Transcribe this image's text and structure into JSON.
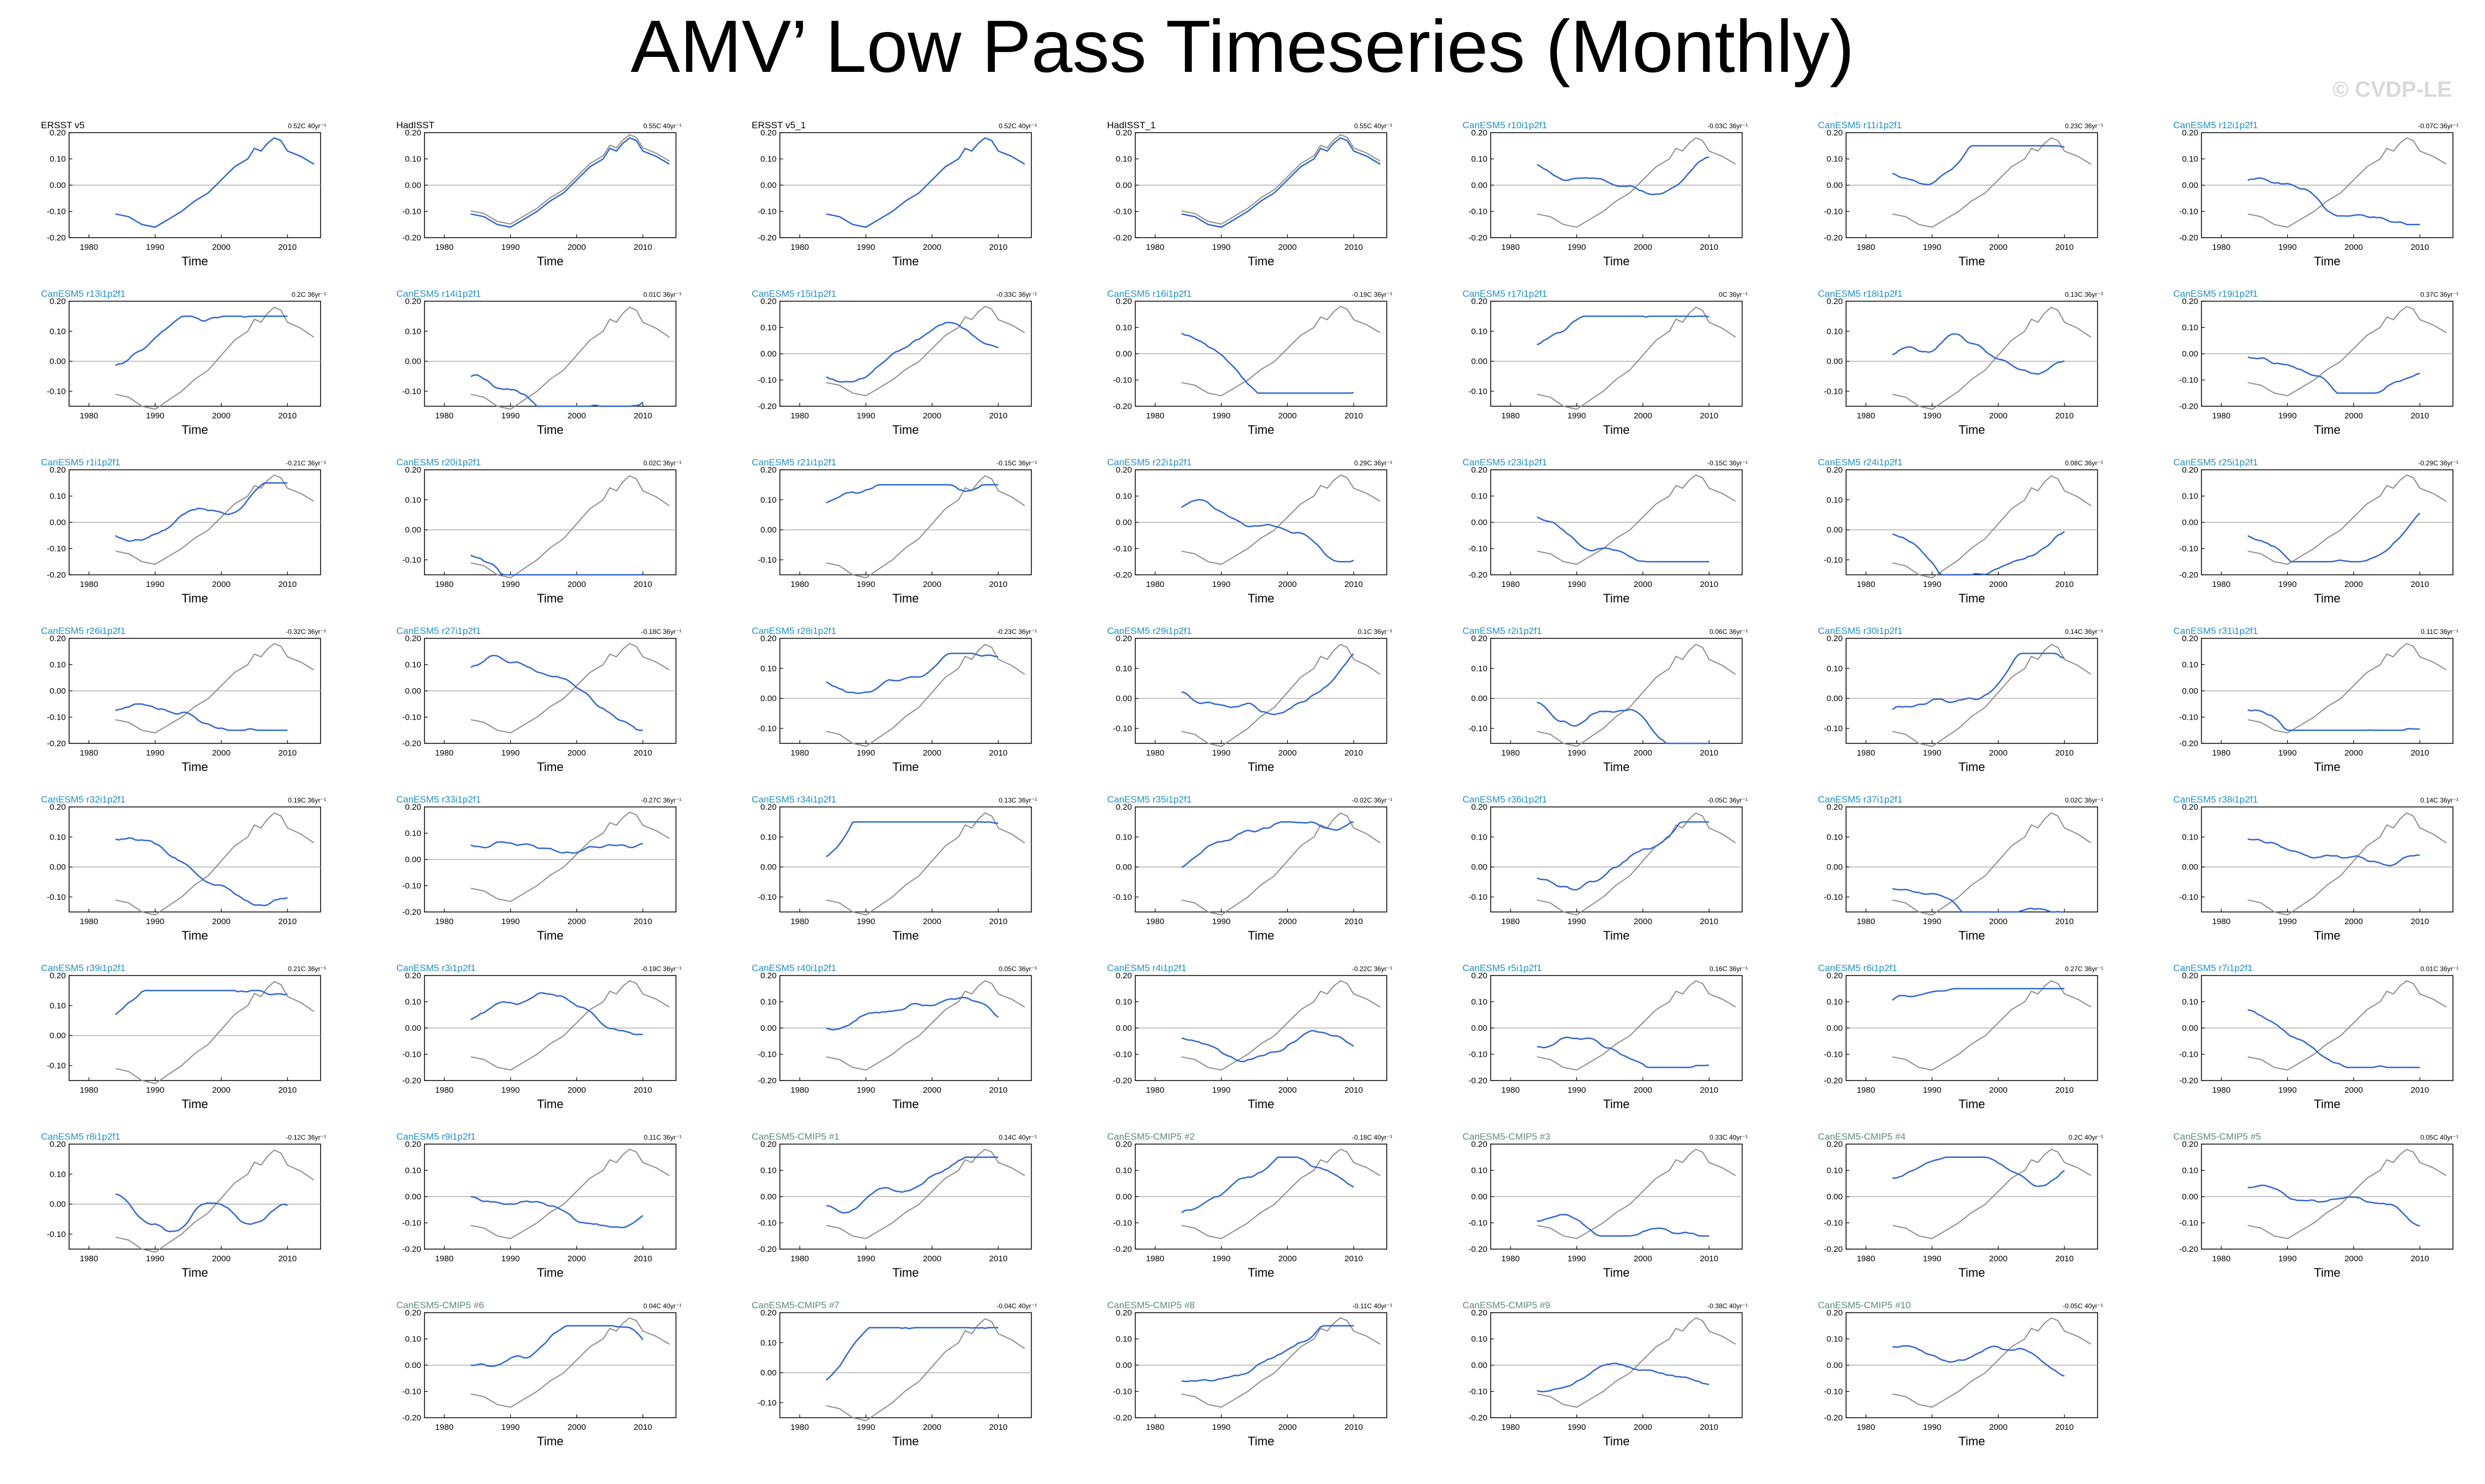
{
  "title": "AMV’ Low Pass Timeseries (Monthly)",
  "watermark": "© CVDP-LE",
  "colors": {
    "obs": "#000000",
    "member": "#1e90c8",
    "ensemble": "#5a8a7a",
    "model_line": "#2f66d4",
    "obs_line": "#8c8c8c"
  },
  "axis": {
    "xlabel": "Time",
    "xticks": [
      1980,
      1990,
      2000,
      2010
    ],
    "yticks_a": [
      "0.20",
      "0.10",
      "0.00",
      "-0.10",
      "-0.20"
    ],
    "yticks_b": [
      "0.20",
      "0.10",
      "0.00",
      "-0.10"
    ]
  },
  "chart_data": {
    "type": "line",
    "x_range": [
      1977,
      2015
    ],
    "observed_reference": [
      -0.11,
      -0.13,
      -0.15,
      -0.17,
      -0.13,
      -0.1,
      -0.06,
      -0.02,
      0.03,
      0.07,
      0.1,
      0.14,
      0.13,
      0.16,
      0.18,
      0.16,
      0.12,
      0.11,
      0.08
    ],
    "observed_x": [
      1984,
      1986,
      1988,
      1990,
      1992,
      1994,
      1996,
      1998,
      2000,
      2002,
      2004,
      2006,
      2005,
      2007,
      2008,
      2009,
      2010,
      2012,
      2014
    ],
    "panels": [
      {
        "name": "ERSST v5",
        "trend": "0.52C 40yr⁻¹",
        "cat": "obs",
        "ylim": [
          -0.2,
          0.2
        ]
      },
      {
        "name": "HadISST",
        "trend": "0.55C 40yr⁻¹",
        "cat": "obs",
        "ylim": [
          -0.2,
          0.2
        ]
      },
      {
        "name": "ERSST v5_1",
        "trend": "0.52C 40yr⁻¹",
        "cat": "obs",
        "ylim": [
          -0.2,
          0.2
        ]
      },
      {
        "name": "HadISST_1",
        "trend": "0.55C 40yr⁻¹",
        "cat": "obs",
        "ylim": [
          -0.2,
          0.2
        ]
      },
      {
        "name": "CanESM5 r10i1p2f1",
        "trend": "-0.03C 36yr⁻¹",
        "cat": "member",
        "ylim": [
          -0.2,
          0.2
        ]
      },
      {
        "name": "CanESM5 r11i1p2f1",
        "trend": "0.23C 36yr⁻¹",
        "cat": "member",
        "ylim": [
          -0.2,
          0.2
        ]
      },
      {
        "name": "CanESM5 r12i1p2f1",
        "trend": "-0.07C 36yr⁻¹",
        "cat": "member",
        "ylim": [
          -0.2,
          0.2
        ]
      },
      {
        "name": "CanESM5 r13i1p2f1",
        "trend": "0.2C 36yr⁻¹",
        "cat": "member",
        "ylim": [
          -0.15,
          0.2
        ]
      },
      {
        "name": "CanESM5 r14i1p2f1",
        "trend": "0.01C 36yr⁻¹",
        "cat": "member",
        "ylim": [
          -0.15,
          0.2
        ]
      },
      {
        "name": "CanESM5 r15i1p2f1",
        "trend": "-0.33C 36yr⁻¹",
        "cat": "member",
        "ylim": [
          -0.2,
          0.2
        ]
      },
      {
        "name": "CanESM5 r16i1p2f1",
        "trend": "-0.19C 36yr⁻¹",
        "cat": "member",
        "ylim": [
          -0.2,
          0.2
        ]
      },
      {
        "name": "CanESM5 r17i1p2f1",
        "trend": "0C 36yr⁻¹",
        "cat": "member",
        "ylim": [
          -0.15,
          0.2
        ]
      },
      {
        "name": "CanESM5 r18i1p2f1",
        "trend": "0.13C 36yr⁻¹",
        "cat": "member",
        "ylim": [
          -0.15,
          0.2
        ]
      },
      {
        "name": "CanESM5 r19i1p2f1",
        "trend": "0.37C 36yr⁻¹",
        "cat": "member",
        "ylim": [
          -0.2,
          0.2
        ]
      },
      {
        "name": "CanESM5 r1i1p2f1",
        "trend": "-0.21C 36yr⁻¹",
        "cat": "member",
        "ylim": [
          -0.2,
          0.2
        ]
      },
      {
        "name": "CanESM5 r20i1p2f1",
        "trend": "0.02C 36yr⁻¹",
        "cat": "member",
        "ylim": [
          -0.15,
          0.2
        ]
      },
      {
        "name": "CanESM5 r21i1p2f1",
        "trend": "-0.15C 36yr⁻¹",
        "cat": "member",
        "ylim": [
          -0.15,
          0.2
        ]
      },
      {
        "name": "CanESM5 r22i1p2f1",
        "trend": "0.29C 36yr⁻¹",
        "cat": "member",
        "ylim": [
          -0.2,
          0.2
        ]
      },
      {
        "name": "CanESM5 r23i1p2f1",
        "trend": "-0.15C 36yr⁻¹",
        "cat": "member",
        "ylim": [
          -0.2,
          0.2
        ]
      },
      {
        "name": "CanESM5 r24i1p2f1",
        "trend": "0.08C 36yr⁻¹",
        "cat": "member",
        "ylim": [
          -0.15,
          0.2
        ]
      },
      {
        "name": "CanESM5 r25i1p2f1",
        "trend": "-0.29C 36yr⁻¹",
        "cat": "member",
        "ylim": [
          -0.2,
          0.2
        ]
      },
      {
        "name": "CanESM5 r26i1p2f1",
        "trend": "-0.32C 36yr⁻¹",
        "cat": "member",
        "ylim": [
          -0.2,
          0.2
        ]
      },
      {
        "name": "CanESM5 r27i1p2f1",
        "trend": "-0.18C 36yr⁻¹",
        "cat": "member",
        "ylim": [
          -0.2,
          0.2
        ]
      },
      {
        "name": "CanESM5 r28i1p2f1",
        "trend": "-0.23C 36yr⁻¹",
        "cat": "member",
        "ylim": [
          -0.15,
          0.2
        ]
      },
      {
        "name": "CanESM5 r29i1p2f1",
        "trend": "0.1C 36yr⁻¹",
        "cat": "member",
        "ylim": [
          -0.15,
          0.2
        ]
      },
      {
        "name": "CanESM5 r2i1p2f1",
        "trend": "0.06C 36yr⁻¹",
        "cat": "member",
        "ylim": [
          -0.15,
          0.2
        ]
      },
      {
        "name": "CanESM5 r30i1p2f1",
        "trend": "0.14C 36yr⁻¹",
        "cat": "member",
        "ylim": [
          -0.15,
          0.2
        ]
      },
      {
        "name": "CanESM5 r31i1p2f1",
        "trend": "0.11C 36yr⁻¹",
        "cat": "member",
        "ylim": [
          -0.2,
          0.2
        ]
      },
      {
        "name": "CanESM5 r32i1p2f1",
        "trend": "0.19C 36yr⁻¹",
        "cat": "member",
        "ylim": [
          -0.15,
          0.2
        ]
      },
      {
        "name": "CanESM5 r33i1p2f1",
        "trend": "-0.27C 36yr⁻¹",
        "cat": "member",
        "ylim": [
          -0.2,
          0.2
        ]
      },
      {
        "name": "CanESM5 r34i1p2f1",
        "trend": "0.13C 36yr⁻¹",
        "cat": "member",
        "ylim": [
          -0.15,
          0.2
        ]
      },
      {
        "name": "CanESM5 r35i1p2f1",
        "trend": "-0.02C 36yr⁻¹",
        "cat": "member",
        "ylim": [
          -0.15,
          0.2
        ]
      },
      {
        "name": "CanESM5 r36i1p2f1",
        "trend": "-0.05C 36yr⁻¹",
        "cat": "member",
        "ylim": [
          -0.15,
          0.2
        ]
      },
      {
        "name": "CanESM5 r37i1p2f1",
        "trend": "0.02C 36yr⁻¹",
        "cat": "member",
        "ylim": [
          -0.15,
          0.2
        ]
      },
      {
        "name": "CanESM5 r38i1p2f1",
        "trend": "0.14C 36yr⁻¹",
        "cat": "member",
        "ylim": [
          -0.15,
          0.2
        ]
      },
      {
        "name": "CanESM5 r39i1p2f1",
        "trend": "0.21C 36yr⁻¹",
        "cat": "member",
        "ylim": [
          -0.15,
          0.2
        ]
      },
      {
        "name": "CanESM5 r3i1p2f1",
        "trend": "-0.19C 36yr⁻¹",
        "cat": "member",
        "ylim": [
          -0.2,
          0.2
        ]
      },
      {
        "name": "CanESM5 r40i1p2f1",
        "trend": "0.05C 36yr⁻¹",
        "cat": "member",
        "ylim": [
          -0.2,
          0.2
        ]
      },
      {
        "name": "CanESM5 r4i1p2f1",
        "trend": "-0.22C 36yr⁻¹",
        "cat": "member",
        "ylim": [
          -0.2,
          0.2
        ]
      },
      {
        "name": "CanESM5 r5i1p2f1",
        "trend": "0.16C 36yr⁻¹",
        "cat": "member",
        "ylim": [
          -0.2,
          0.2
        ]
      },
      {
        "name": "CanESM5 r6i1p2f1",
        "trend": "0.27C 36yr⁻¹",
        "cat": "member",
        "ylim": [
          -0.2,
          0.2
        ]
      },
      {
        "name": "CanESM5 r7i1p2f1",
        "trend": "0.01C 36yr⁻¹",
        "cat": "member",
        "ylim": [
          -0.2,
          0.2
        ]
      },
      {
        "name": "CanESM5 r8i1p2f1",
        "trend": "-0.12C 36yr⁻¹",
        "cat": "member",
        "ylim": [
          -0.15,
          0.2
        ]
      },
      {
        "name": "CanESM5 r9i1p2f1",
        "trend": "0.11C 36yr⁻¹",
        "cat": "member",
        "ylim": [
          -0.2,
          0.2
        ]
      },
      {
        "name": "CanESM5-CMIP5 #1",
        "trend": "0.14C 40yr⁻¹",
        "cat": "ensemble",
        "ylim": [
          -0.2,
          0.2
        ]
      },
      {
        "name": "CanESM5-CMIP5 #2",
        "trend": "-0.18C 40yr⁻¹",
        "cat": "ensemble",
        "ylim": [
          -0.2,
          0.2
        ]
      },
      {
        "name": "CanESM5-CMIP5 #3",
        "trend": "0.33C 40yr⁻¹",
        "cat": "ensemble",
        "ylim": [
          -0.2,
          0.2
        ]
      },
      {
        "name": "CanESM5-CMIP5 #4",
        "trend": "0.2C 40yr⁻¹",
        "cat": "ensemble",
        "ylim": [
          -0.2,
          0.2
        ]
      },
      {
        "name": "CanESM5-CMIP5 #5",
        "trend": "0.05C 40yr⁻¹",
        "cat": "ensemble",
        "ylim": [
          -0.2,
          0.2
        ]
      },
      {
        "name": "CanESM5-CMIP5 #6",
        "trend": "0.04C 40yr⁻¹",
        "cat": "ensemble",
        "ylim": [
          -0.2,
          0.2
        ]
      },
      {
        "name": "CanESM5-CMIP5 #7",
        "trend": "-0.04C 40yr⁻¹",
        "cat": "ensemble",
        "ylim": [
          -0.15,
          0.2
        ]
      },
      {
        "name": "CanESM5-CMIP5 #8",
        "trend": "-0.11C 40yr⁻¹",
        "cat": "ensemble",
        "ylim": [
          -0.2,
          0.2
        ]
      },
      {
        "name": "CanESM5-CMIP5 #9",
        "trend": "-0.38C 40yr⁻¹",
        "cat": "ensemble",
        "ylim": [
          -0.2,
          0.2
        ]
      },
      {
        "name": "CanESM5-CMIP5 #10",
        "trend": "-0.05C 40yr⁻¹",
        "cat": "ensemble",
        "ylim": [
          -0.2,
          0.2
        ]
      }
    ]
  }
}
